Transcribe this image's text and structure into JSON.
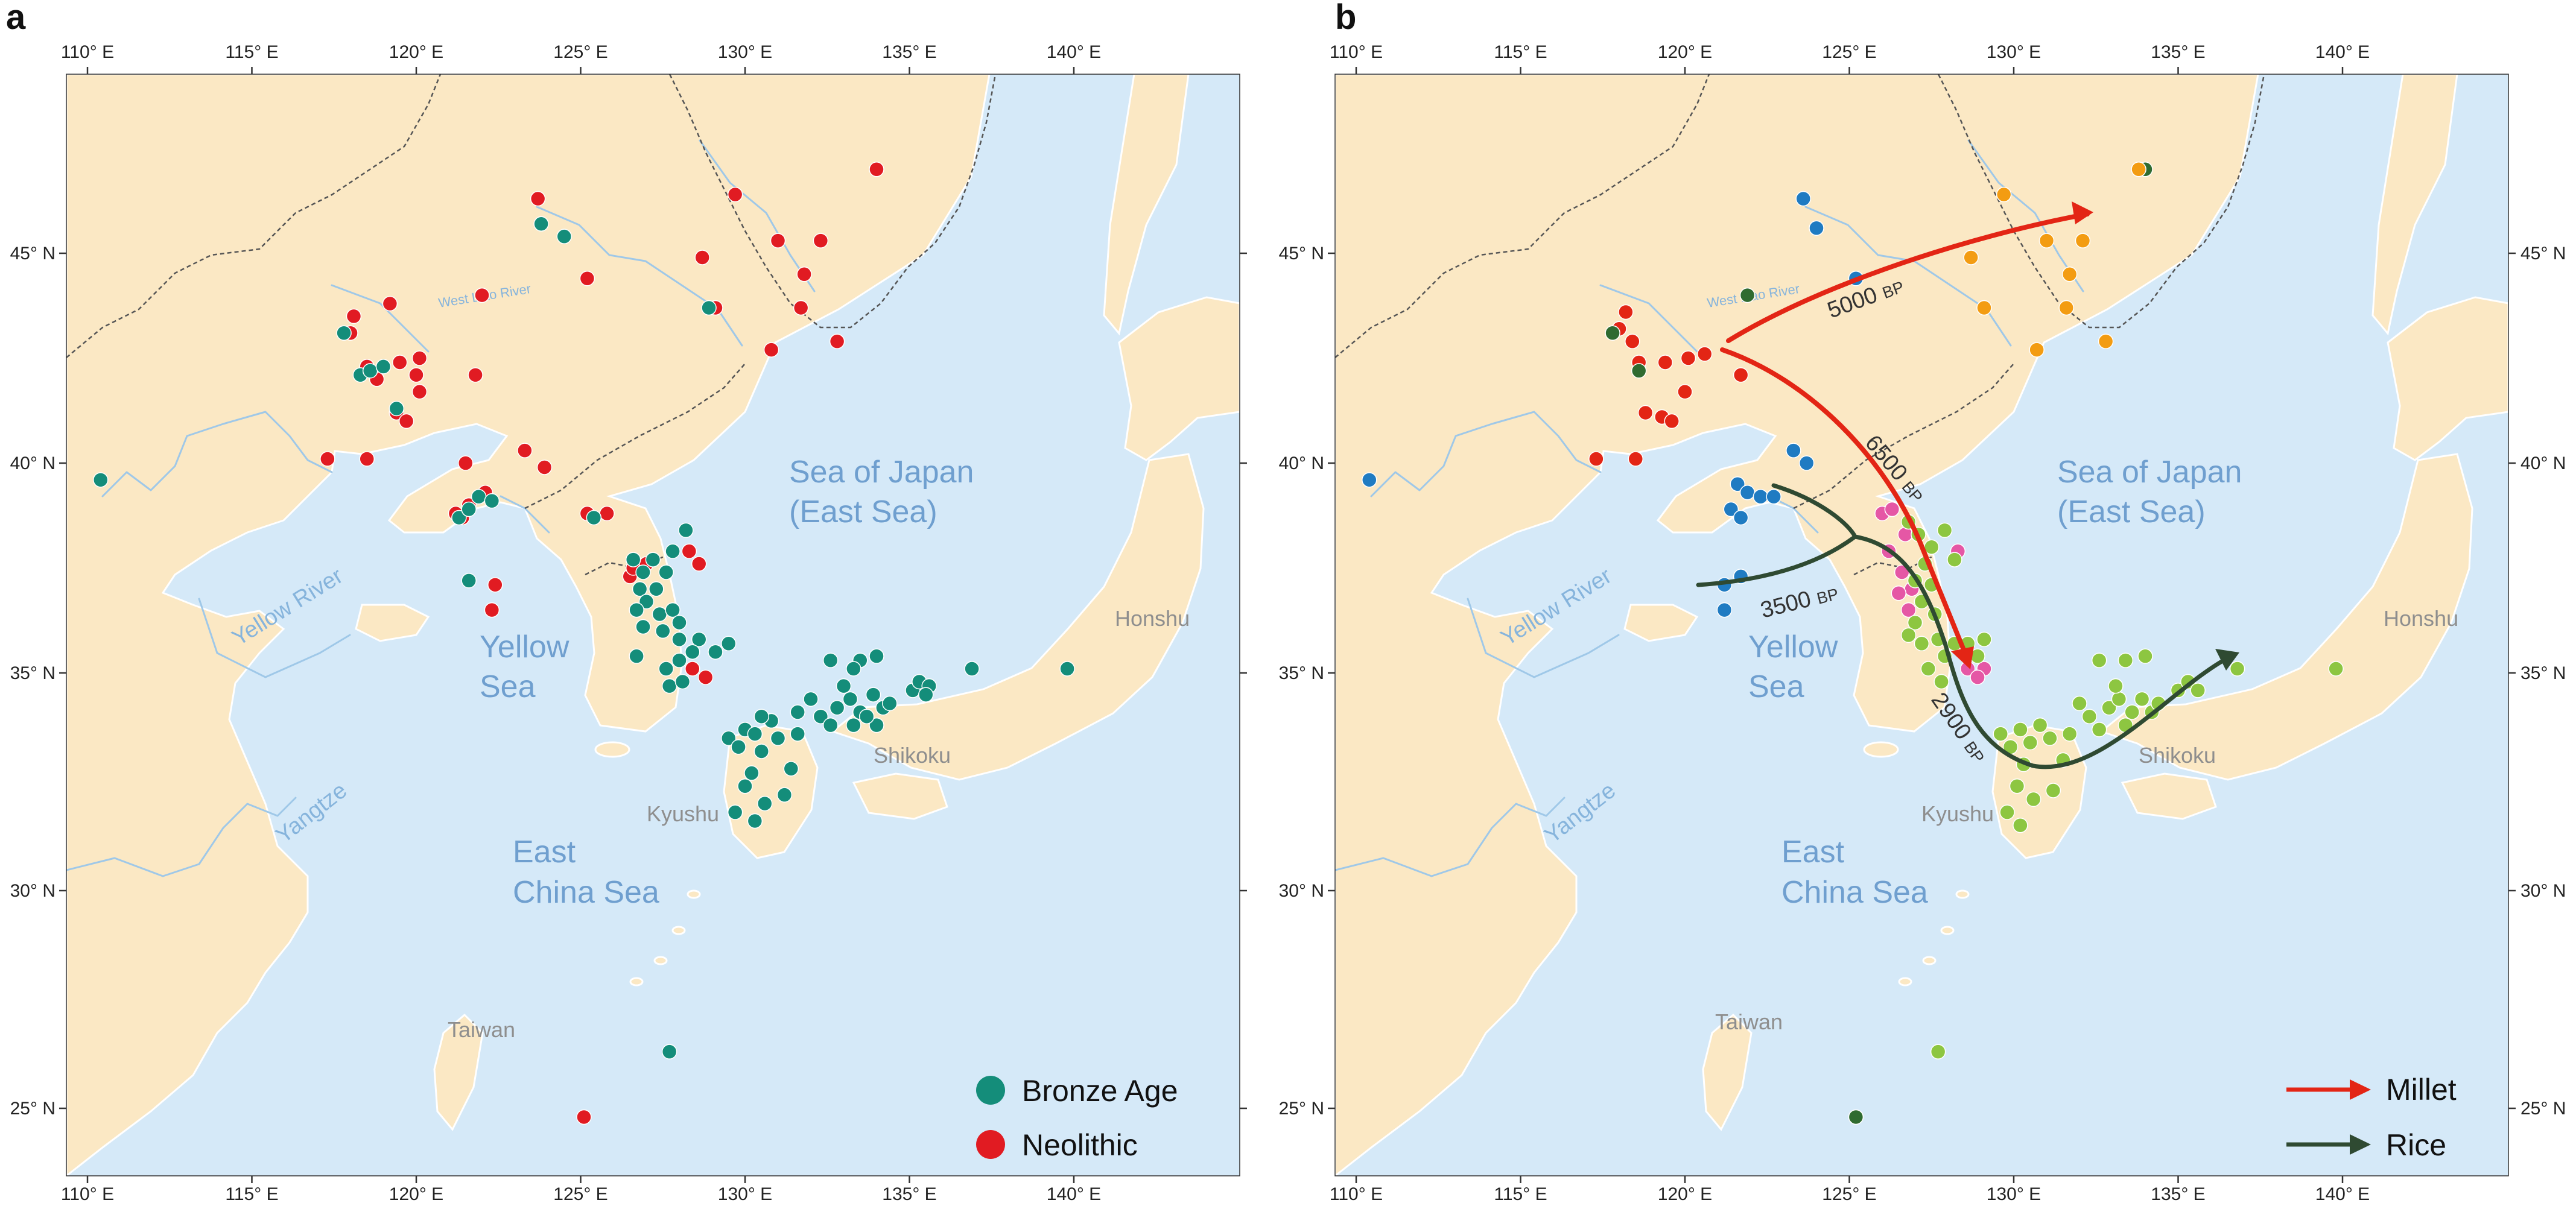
{
  "panels": {
    "a": {
      "label": "a",
      "legend": [
        {
          "label": "Bronze Age",
          "color": "#148d7a"
        },
        {
          "label": "Neolithic",
          "color": "#e11b22"
        }
      ]
    },
    "b": {
      "label": "b",
      "legend": [
        {
          "label": "Millet",
          "color": "#e32515"
        },
        {
          "label": "Rice",
          "color": "#2f4a32"
        }
      ],
      "routes": [
        {
          "crop": "Millet",
          "age_label": "5000",
          "unit": "BP"
        },
        {
          "crop": "Millet",
          "age_label": "6500",
          "unit": "BP"
        },
        {
          "crop": "Rice",
          "age_label": "3500",
          "unit": "BP"
        },
        {
          "crop": "Rice",
          "age_label": "2900",
          "unit": "BP"
        }
      ]
    }
  },
  "axes": {
    "lon_ticks": [
      "110° E",
      "115° E",
      "120° E",
      "125° E",
      "130° E",
      "135° E",
      "140° E"
    ],
    "lat_ticks": [
      "45° N",
      "40° N",
      "35° N",
      "30° N",
      "25° N"
    ]
  },
  "labels": {
    "sea_of_japan_1": "Sea of Japan",
    "sea_of_japan_2": "(East Sea)",
    "yellow_sea_1": "Yellow",
    "yellow_sea_2": "Sea",
    "east_china_sea_1": "East",
    "east_china_sea_2": "China Sea",
    "yellow_river": "Yellow River",
    "yangtze": "Yangtze",
    "west_liao": "West Liao River",
    "honshu": "Honshu",
    "shikoku": "Shikoku",
    "kyushu": "Kyushu",
    "taiwan": "Taiwan"
  },
  "site_data": {
    "panel_a": [
      {
        "period": "Neolithic",
        "sites": [
          [
            123.7,
            46.3
          ],
          [
            129.7,
            46.4
          ],
          [
            134.0,
            47.0
          ],
          [
            122.0,
            44.0
          ],
          [
            125.2,
            44.4
          ],
          [
            128.7,
            44.9
          ],
          [
            129.1,
            43.7
          ],
          [
            131.0,
            45.3
          ],
          [
            132.3,
            45.3
          ],
          [
            131.8,
            44.5
          ],
          [
            131.7,
            43.7
          ],
          [
            132.8,
            42.9
          ],
          [
            130.8,
            42.7
          ],
          [
            119.2,
            43.8
          ],
          [
            118.1,
            43.5
          ],
          [
            118.0,
            43.1
          ],
          [
            118.5,
            42.3
          ],
          [
            119.5,
            42.4
          ],
          [
            120.1,
            42.5
          ],
          [
            120.0,
            42.1
          ],
          [
            118.8,
            42.0
          ],
          [
            120.1,
            41.7
          ],
          [
            121.8,
            42.1
          ],
          [
            119.4,
            41.2
          ],
          [
            119.7,
            41.0
          ],
          [
            117.3,
            40.1
          ],
          [
            118.5,
            40.1
          ],
          [
            123.3,
            40.3
          ],
          [
            123.9,
            39.9
          ],
          [
            122.1,
            39.3
          ],
          [
            121.6,
            39.0
          ],
          [
            121.2,
            38.8
          ],
          [
            121.4,
            38.7
          ],
          [
            125.2,
            38.8
          ],
          [
            125.8,
            38.8
          ],
          [
            126.5,
            37.3
          ],
          [
            126.6,
            37.5
          ],
          [
            127.0,
            37.6
          ],
          [
            128.3,
            37.9
          ],
          [
            128.6,
            37.6
          ],
          [
            128.4,
            35.1
          ],
          [
            128.8,
            34.9
          ],
          [
            122.4,
            37.1
          ],
          [
            122.3,
            36.5
          ],
          [
            125.1,
            24.8
          ],
          [
            121.5,
            40.0
          ]
        ]
      },
      {
        "period": "Bronze Age",
        "sites": [
          [
            110.4,
            39.6
          ],
          [
            123.8,
            45.7
          ],
          [
            124.5,
            45.4
          ],
          [
            128.9,
            43.7
          ],
          [
            117.8,
            43.1
          ],
          [
            118.3,
            42.1
          ],
          [
            118.6,
            42.2
          ],
          [
            119.0,
            42.3
          ],
          [
            119.4,
            41.3
          ],
          [
            121.3,
            38.7
          ],
          [
            121.6,
            38.9
          ],
          [
            121.9,
            39.2
          ],
          [
            122.3,
            39.1
          ],
          [
            121.6,
            37.2
          ],
          [
            125.4,
            38.7
          ],
          [
            126.6,
            37.7
          ],
          [
            126.9,
            37.4
          ],
          [
            127.2,
            37.7
          ],
          [
            126.8,
            37.0
          ],
          [
            127.3,
            37.0
          ],
          [
            127.0,
            36.7
          ],
          [
            127.4,
            36.4
          ],
          [
            126.7,
            36.5
          ],
          [
            127.5,
            36.0
          ],
          [
            126.9,
            36.1
          ],
          [
            127.8,
            36.5
          ],
          [
            128.0,
            36.2
          ],
          [
            128.0,
            35.8
          ],
          [
            128.6,
            35.8
          ],
          [
            128.4,
            35.5
          ],
          [
            128.0,
            35.3
          ],
          [
            127.6,
            35.1
          ],
          [
            127.7,
            34.7
          ],
          [
            128.1,
            34.8
          ],
          [
            126.7,
            35.4
          ],
          [
            129.1,
            35.5
          ],
          [
            129.5,
            35.7
          ],
          [
            127.6,
            37.4
          ],
          [
            127.8,
            37.9
          ],
          [
            128.2,
            38.4
          ],
          [
            129.5,
            33.5
          ],
          [
            129.8,
            33.3
          ],
          [
            130.0,
            33.7
          ],
          [
            130.3,
            33.6
          ],
          [
            130.5,
            33.2
          ],
          [
            130.8,
            33.9
          ],
          [
            131.0,
            33.5
          ],
          [
            130.2,
            32.7
          ],
          [
            130.0,
            32.4
          ],
          [
            129.7,
            31.8
          ],
          [
            130.3,
            31.6
          ],
          [
            130.6,
            32.0
          ],
          [
            131.2,
            32.2
          ],
          [
            131.4,
            32.8
          ],
          [
            131.6,
            33.6
          ],
          [
            130.5,
            34.0
          ],
          [
            131.6,
            34.1
          ],
          [
            132.0,
            34.4
          ],
          [
            132.3,
            34.0
          ],
          [
            132.6,
            33.8
          ],
          [
            132.8,
            34.2
          ],
          [
            133.2,
            34.4
          ],
          [
            133.3,
            33.8
          ],
          [
            133.5,
            34.1
          ],
          [
            133.9,
            34.5
          ],
          [
            134.2,
            34.2
          ],
          [
            134.0,
            33.8
          ],
          [
            133.7,
            34.0
          ],
          [
            134.4,
            34.3
          ],
          [
            133.0,
            34.7
          ],
          [
            132.6,
            35.3
          ],
          [
            133.5,
            35.3
          ],
          [
            134.0,
            35.4
          ],
          [
            133.3,
            35.1
          ],
          [
            135.1,
            34.6
          ],
          [
            135.3,
            34.8
          ],
          [
            135.6,
            34.7
          ],
          [
            135.5,
            34.5
          ],
          [
            136.9,
            35.1
          ],
          [
            139.8,
            35.1
          ],
          [
            127.7,
            26.3
          ]
        ]
      }
    ],
    "panel_b": [
      {
        "group": "red",
        "color": "#e32515",
        "sites": [
          [
            118.2,
            43.6
          ],
          [
            118.0,
            43.2
          ],
          [
            118.4,
            42.9
          ],
          [
            118.6,
            42.4
          ],
          [
            119.4,
            42.4
          ],
          [
            120.1,
            42.5
          ],
          [
            120.6,
            42.6
          ],
          [
            121.7,
            42.1
          ],
          [
            118.8,
            41.2
          ],
          [
            120.0,
            41.7
          ],
          [
            117.3,
            40.1
          ],
          [
            118.5,
            40.1
          ],
          [
            119.3,
            41.1
          ],
          [
            119.6,
            41.0
          ]
        ]
      },
      {
        "group": "dark-green",
        "color": "#2f6b30",
        "sites": [
          [
            117.8,
            43.1
          ],
          [
            121.9,
            44.0
          ],
          [
            118.6,
            42.2
          ],
          [
            134.0,
            47.0
          ],
          [
            125.2,
            24.8
          ]
        ]
      },
      {
        "group": "blue",
        "color": "#1f7bc2",
        "sites": [
          [
            123.6,
            46.3
          ],
          [
            124.0,
            45.6
          ],
          [
            125.2,
            44.4
          ],
          [
            110.4,
            39.6
          ],
          [
            123.3,
            40.3
          ],
          [
            123.7,
            40.0
          ],
          [
            121.6,
            39.5
          ],
          [
            121.9,
            39.3
          ],
          [
            122.3,
            39.2
          ],
          [
            121.4,
            38.9
          ],
          [
            121.7,
            38.7
          ],
          [
            122.7,
            39.2
          ],
          [
            121.7,
            37.3
          ],
          [
            121.2,
            37.1
          ],
          [
            121.2,
            36.5
          ]
        ]
      },
      {
        "group": "orange",
        "color": "#f39c12",
        "sites": [
          [
            129.7,
            46.4
          ],
          [
            133.8,
            47.0
          ],
          [
            128.7,
            44.9
          ],
          [
            131.0,
            45.3
          ],
          [
            132.1,
            45.3
          ],
          [
            131.7,
            44.5
          ],
          [
            131.6,
            43.7
          ],
          [
            132.8,
            42.9
          ],
          [
            130.7,
            42.7
          ],
          [
            129.1,
            43.7
          ]
        ]
      },
      {
        "group": "pink",
        "color": "#e557a5",
        "sites": [
          [
            126.0,
            38.8
          ],
          [
            126.3,
            38.9
          ],
          [
            126.7,
            38.3
          ],
          [
            126.2,
            37.9
          ],
          [
            126.6,
            37.4
          ],
          [
            126.9,
            37.0
          ],
          [
            126.5,
            36.9
          ],
          [
            126.8,
            36.5
          ],
          [
            128.3,
            37.9
          ],
          [
            128.6,
            35.1
          ],
          [
            129.1,
            35.1
          ],
          [
            128.9,
            34.9
          ]
        ]
      },
      {
        "group": "light-green",
        "color": "#8dc641",
        "sites": [
          [
            126.8,
            38.6
          ],
          [
            127.1,
            38.3
          ],
          [
            127.5,
            38.0
          ],
          [
            127.9,
            38.4
          ],
          [
            128.2,
            37.7
          ],
          [
            127.3,
            37.6
          ],
          [
            127.0,
            37.2
          ],
          [
            127.5,
            37.1
          ],
          [
            127.2,
            36.7
          ],
          [
            127.6,
            36.4
          ],
          [
            127.0,
            36.2
          ],
          [
            126.8,
            35.9
          ],
          [
            127.2,
            35.7
          ],
          [
            127.7,
            35.8
          ],
          [
            127.9,
            35.4
          ],
          [
            128.2,
            35.7
          ],
          [
            128.6,
            35.7
          ],
          [
            128.9,
            35.4
          ],
          [
            129.1,
            35.8
          ],
          [
            127.4,
            35.1
          ],
          [
            127.8,
            34.8
          ],
          [
            129.6,
            33.6
          ],
          [
            129.9,
            33.3
          ],
          [
            130.2,
            33.7
          ],
          [
            130.5,
            33.4
          ],
          [
            130.8,
            33.8
          ],
          [
            131.1,
            33.5
          ],
          [
            130.3,
            32.9
          ],
          [
            130.1,
            32.4
          ],
          [
            129.8,
            31.8
          ],
          [
            130.2,
            31.5
          ],
          [
            130.6,
            32.1
          ],
          [
            131.2,
            32.3
          ],
          [
            131.5,
            33.0
          ],
          [
            131.7,
            33.6
          ],
          [
            132.0,
            34.3
          ],
          [
            132.3,
            34.0
          ],
          [
            132.6,
            33.7
          ],
          [
            132.9,
            34.2
          ],
          [
            133.2,
            34.4
          ],
          [
            133.4,
            33.8
          ],
          [
            133.6,
            34.1
          ],
          [
            133.9,
            34.4
          ],
          [
            134.2,
            34.1
          ],
          [
            134.4,
            34.3
          ],
          [
            133.1,
            34.7
          ],
          [
            132.6,
            35.3
          ],
          [
            133.4,
            35.3
          ],
          [
            134.0,
            35.4
          ],
          [
            135.0,
            34.6
          ],
          [
            135.3,
            34.8
          ],
          [
            135.6,
            34.6
          ],
          [
            136.8,
            35.1
          ],
          [
            139.8,
            35.1
          ],
          [
            127.7,
            26.3
          ]
        ]
      }
    ]
  }
}
